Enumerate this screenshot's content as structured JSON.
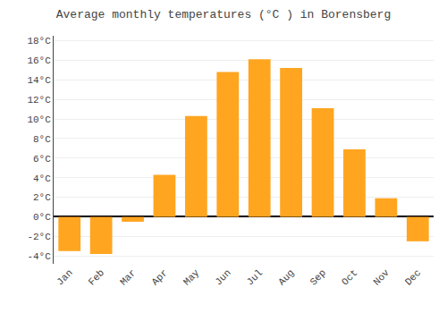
{
  "chart_data": {
    "type": "bar",
    "title": "Average monthly temperatures (°C ) in Borensberg",
    "categories": [
      "Jan",
      "Feb",
      "Mar",
      "Apr",
      "May",
      "Jun",
      "Jul",
      "Aug",
      "Sep",
      "Oct",
      "Nov",
      "Dec"
    ],
    "values": [
      -3.5,
      -3.8,
      -0.5,
      4.3,
      10.3,
      14.8,
      16.1,
      15.2,
      11.1,
      6.9,
      1.9,
      -2.5
    ],
    "color": "#FFA520",
    "ylim": [
      -4.8,
      18.5
    ],
    "yticks": [
      {
        "value": -4,
        "label": "-4°C"
      },
      {
        "value": -2,
        "label": "-2°C"
      },
      {
        "value": 0,
        "label": "0°C"
      },
      {
        "value": 2,
        "label": "2°C"
      },
      {
        "value": 4,
        "label": "4°C"
      },
      {
        "value": 6,
        "label": "6°C"
      },
      {
        "value": 8,
        "label": "8°C"
      },
      {
        "value": 10,
        "label": "10°C"
      },
      {
        "value": 12,
        "label": "12°C"
      },
      {
        "value": 14,
        "label": "14°C"
      },
      {
        "value": 16,
        "label": "16°C"
      },
      {
        "value": 18,
        "label": "18°C"
      }
    ],
    "grid": true
  }
}
